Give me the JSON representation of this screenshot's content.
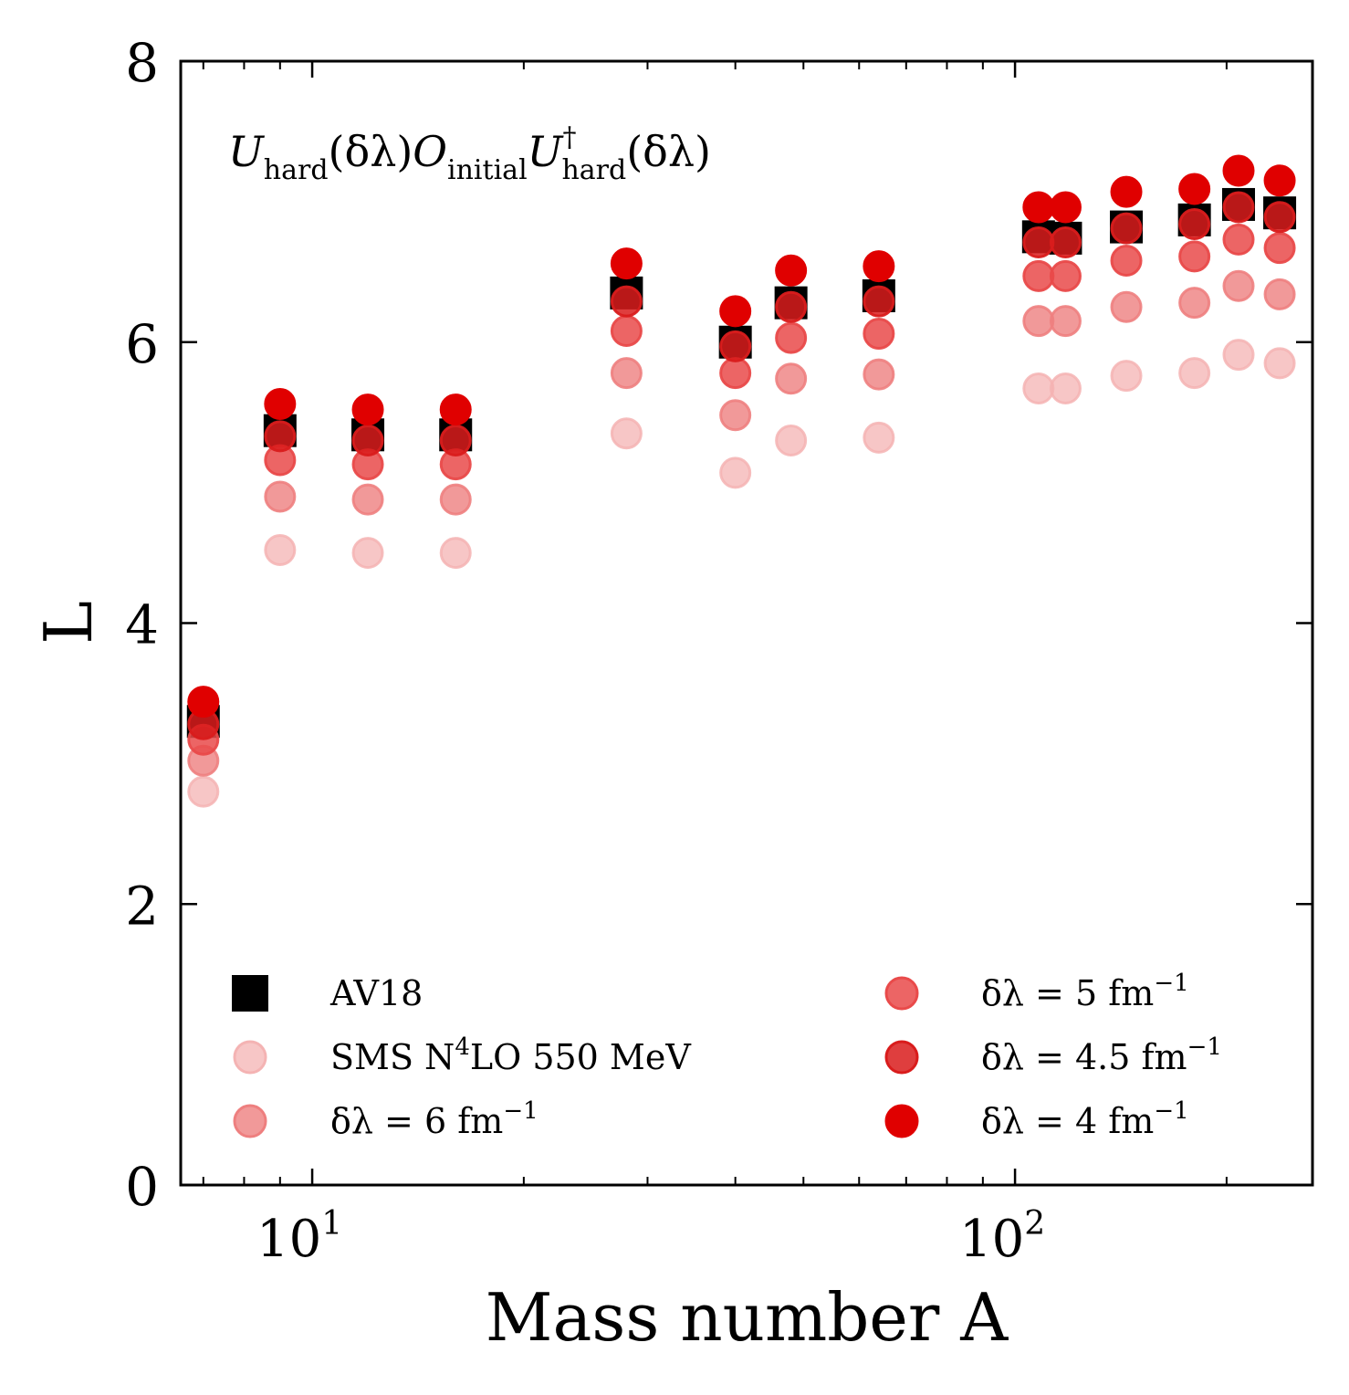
{
  "chart_data": {
    "type": "scatter",
    "xscale": "log",
    "xlim": [
      6.5,
      265
    ],
    "ylim": [
      0,
      8
    ],
    "xlabel": "Mass number A",
    "ylabel": "L",
    "annotation": {
      "U": "U",
      "hard_sub": "hard",
      "delta_lambda": "(δλ)",
      "O": "O",
      "initial_sub": "initial",
      "dagger": "†"
    },
    "xticks_major": [
      {
        "value": 10,
        "base": "10",
        "exp": "1"
      },
      {
        "value": 100,
        "base": "10",
        "exp": "2"
      }
    ],
    "yticks": [
      0,
      2,
      4,
      6,
      8
    ],
    "grid": false,
    "legend_position": "lower-left, two columns",
    "x": [
      7,
      9,
      12,
      16,
      28,
      40,
      48,
      64,
      108,
      118,
      144,
      180,
      208,
      238
    ],
    "series": [
      {
        "name": "AV18",
        "marker": "square",
        "color": "#000000",
        "opacity": 1,
        "values": [
          3.3,
          5.37,
          5.34,
          5.34,
          6.35,
          6.0,
          6.28,
          6.33,
          6.75,
          6.74,
          6.82,
          6.87,
          6.98,
          6.92
        ]
      },
      {
        "name_prefix": "SMS N",
        "name_sup": "4",
        "name_suffix": "LO 550 MeV",
        "marker": "circle",
        "color": "#f4b3b3",
        "opacity": 0.75,
        "values": [
          2.8,
          4.52,
          4.5,
          4.5,
          5.35,
          5.07,
          5.3,
          5.32,
          5.67,
          5.67,
          5.76,
          5.78,
          5.91,
          5.85
        ]
      },
      {
        "name_prefix": "δλ = 6 fm",
        "name_sup": "−1",
        "marker": "circle",
        "color": "#ee7f7f",
        "opacity": 0.8,
        "values": [
          3.02,
          4.9,
          4.88,
          4.88,
          5.78,
          5.48,
          5.74,
          5.77,
          6.15,
          6.15,
          6.25,
          6.28,
          6.4,
          6.34
        ]
      },
      {
        "name_prefix": "δλ = 5 fm",
        "name_sup": "−1",
        "marker": "circle",
        "color": "#e94a4a",
        "opacity": 0.85,
        "values": [
          3.17,
          5.16,
          5.13,
          5.13,
          6.08,
          5.78,
          6.03,
          6.06,
          6.47,
          6.47,
          6.58,
          6.61,
          6.73,
          6.67
        ]
      },
      {
        "name_prefix": "δλ = 4.5 fm",
        "name_sup": "−1",
        "marker": "circle",
        "color": "#d91c1c",
        "opacity": 0.85,
        "values": [
          3.28,
          5.33,
          5.3,
          5.3,
          6.29,
          5.97,
          6.25,
          6.29,
          6.71,
          6.71,
          6.81,
          6.84,
          6.96,
          6.89
        ]
      },
      {
        "name_prefix": "δλ = 4 fm",
        "name_sup": "−1",
        "marker": "circle",
        "color": "#e00000",
        "opacity": 1,
        "values": [
          3.44,
          5.56,
          5.52,
          5.52,
          6.56,
          6.22,
          6.51,
          6.54,
          6.96,
          6.96,
          7.07,
          7.09,
          7.22,
          7.15
        ]
      }
    ]
  }
}
